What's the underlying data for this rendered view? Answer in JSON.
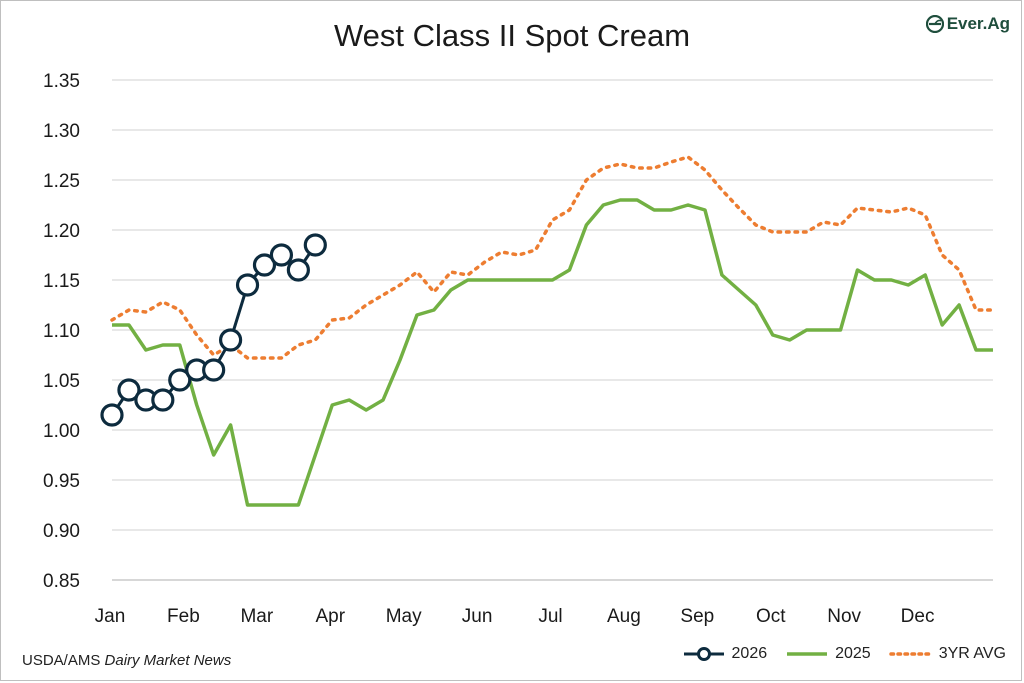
{
  "chart_data": {
    "type": "line",
    "title": "West Class II Spot Cream",
    "xlabel": "",
    "ylabel": "",
    "ylim": [
      0.85,
      1.35
    ],
    "yticks": [
      "1.35",
      "1.30",
      "1.25",
      "1.20",
      "1.15",
      "1.10",
      "1.05",
      "1.00",
      "0.95",
      "0.90",
      "0.85"
    ],
    "xticks": [
      "Jan",
      "Feb",
      "Mar",
      "Apr",
      "May",
      "Jun",
      "Jul",
      "Aug",
      "Sep",
      "Oct",
      "Nov",
      "Dec"
    ],
    "grid": true,
    "legend_position": "bottom-right",
    "series": [
      {
        "name": "2026",
        "color": "#0d2b3e",
        "style": "solid-markers",
        "x": [
          1,
          2,
          3,
          4,
          5,
          6,
          7,
          8,
          9,
          10,
          11,
          12,
          13
        ],
        "values": [
          1.015,
          1.04,
          1.03,
          1.03,
          1.05,
          1.06,
          1.06,
          1.09,
          1.145,
          1.165,
          1.175,
          1.16,
          1.185
        ]
      },
      {
        "name": "2025",
        "color": "#72b043",
        "style": "solid",
        "x": [
          1,
          2,
          3,
          4,
          5,
          6,
          7,
          8,
          9,
          10,
          11,
          12,
          13,
          14,
          15,
          16,
          17,
          18,
          19,
          20,
          21,
          22,
          23,
          24,
          25,
          26,
          27,
          28,
          29,
          30,
          31,
          32,
          33,
          34,
          35,
          36,
          37,
          38,
          39,
          40,
          41,
          42,
          43,
          44,
          45,
          46,
          47,
          48,
          49,
          50,
          51,
          52,
          53
        ],
        "values": [
          1.105,
          1.105,
          1.08,
          1.085,
          1.085,
          1.025,
          0.975,
          1.005,
          0.925,
          0.925,
          0.925,
          0.925,
          0.975,
          1.025,
          1.03,
          1.02,
          1.03,
          1.07,
          1.115,
          1.12,
          1.14,
          1.15,
          1.15,
          1.15,
          1.15,
          1.15,
          1.15,
          1.16,
          1.205,
          1.225,
          1.23,
          1.23,
          1.22,
          1.22,
          1.225,
          1.22,
          1.155,
          1.14,
          1.125,
          1.095,
          1.09,
          1.1,
          1.1,
          1.1,
          1.16,
          1.15,
          1.15,
          1.145,
          1.155,
          1.105,
          1.125,
          1.08,
          1.08
        ]
      },
      {
        "name": "3YR AVG",
        "color": "#ed7d31",
        "style": "dotted",
        "x": [
          1,
          2,
          3,
          4,
          5,
          6,
          7,
          8,
          9,
          10,
          11,
          12,
          13,
          14,
          15,
          16,
          17,
          18,
          19,
          20,
          21,
          22,
          23,
          24,
          25,
          26,
          27,
          28,
          29,
          30,
          31,
          32,
          33,
          34,
          35,
          36,
          37,
          38,
          39,
          40,
          41,
          42,
          43,
          44,
          45,
          46,
          47,
          48,
          49,
          50,
          51,
          52,
          53
        ],
        "values": [
          1.11,
          1.12,
          1.118,
          1.128,
          1.12,
          1.095,
          1.075,
          1.085,
          1.072,
          1.072,
          1.072,
          1.085,
          1.09,
          1.11,
          1.112,
          1.125,
          1.135,
          1.145,
          1.158,
          1.138,
          1.158,
          1.155,
          1.168,
          1.178,
          1.175,
          1.18,
          1.21,
          1.22,
          1.25,
          1.262,
          1.266,
          1.262,
          1.262,
          1.268,
          1.273,
          1.26,
          1.24,
          1.222,
          1.205,
          1.198,
          1.198,
          1.198,
          1.208,
          1.205,
          1.222,
          1.22,
          1.218,
          1.222,
          1.215,
          1.175,
          1.16,
          1.12,
          1.12
        ]
      }
    ]
  },
  "logo": {
    "text": "Ever.Ag",
    "color": "#1f4e3d",
    "icon": "ever-ag-leaf-icon"
  },
  "source": {
    "prefix": "USDA/AMS ",
    "italic": "Dairy Market News"
  }
}
